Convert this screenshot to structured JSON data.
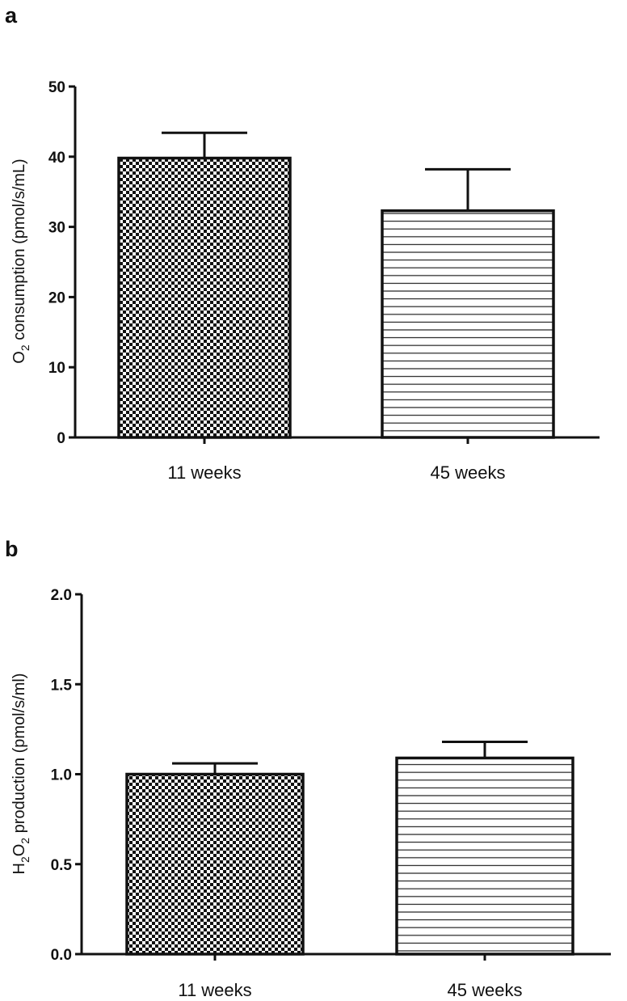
{
  "chart_data": [
    {
      "type": "bar",
      "panel": "a",
      "ylabel_parts": [
        "O",
        "2",
        " consumption (pmol/s/mL)"
      ],
      "ylabel": "O2 consumption (pmol/s/mL)",
      "ylim": [
        0,
        50
      ],
      "yticks": [
        0,
        10,
        20,
        30,
        40,
        50
      ],
      "ytick_labels": [
        "0",
        "10",
        "20",
        "30",
        "40",
        "50"
      ],
      "categories": [
        "11 weeks",
        "45 weeks"
      ],
      "values": [
        39.8,
        32.3
      ],
      "errors_upper": [
        43.4,
        38.2
      ],
      "patterns": [
        "checkerboard",
        "horizontal-lines"
      ]
    },
    {
      "type": "bar",
      "panel": "b",
      "ylabel_parts": [
        "H",
        "2",
        "O",
        "2",
        " production (pmol/s/ml)"
      ],
      "ylabel": "H2O2 production (pmol/s/ml)",
      "ylim": [
        0,
        2.0
      ],
      "yticks": [
        0,
        0.5,
        1.0,
        1.5,
        2.0
      ],
      "ytick_labels": [
        "0.0",
        "0.5",
        "1.0",
        "1.5",
        "2.0"
      ],
      "categories": [
        "11 weeks",
        "45 weeks"
      ],
      "values": [
        1.0,
        1.09
      ],
      "errors_upper": [
        1.06,
        1.18
      ],
      "patterns": [
        "checkerboard",
        "horizontal-lines"
      ]
    }
  ]
}
